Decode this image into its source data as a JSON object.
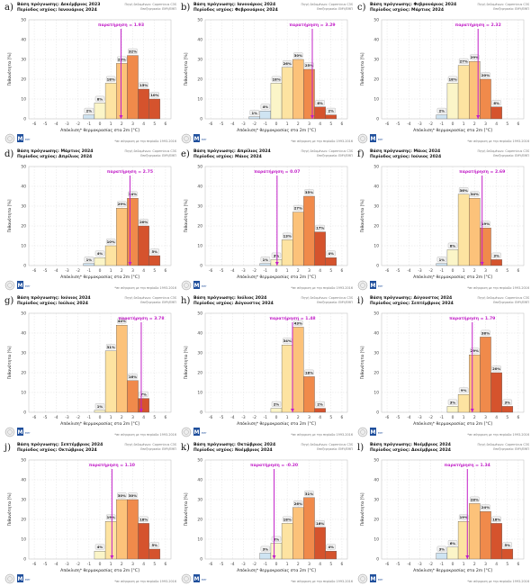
{
  "figure": {
    "source_line1": "Πηγή δεδομένων: Copernicus C3S",
    "source_line2": "Επεξεργασία: ΕΜΥ/ΕΜΠ",
    "footer": "*σε σύγκριση με την περίοδο 1993-2016",
    "xlabel": "Απόκλιση* θερμοκρασίας στα 2m [°C]",
    "ylabel": "Πιθανότητα [%]",
    "logo_text": "EMY"
  },
  "colors": {
    "lightblue": "#cfe4f2",
    "paleyellow": "#fbf5c8",
    "lightorange": "#fde3a1",
    "orange": "#fcc27a",
    "darkorange": "#f08a4b",
    "red": "#d5532d",
    "obs_line": "#c21fc8",
    "grid": "#d9d9d9"
  },
  "chart_data": [
    {
      "type": "bar",
      "panel_letter": "a)",
      "title": "Βάση πρόγνωσης: Δεκέμβριος 2023",
      "subtitle": "Περίοδος ισχύος: Ιανουάριος 2024",
      "observation_label": "παρατήρηση = 1.93",
      "observation": 1.93,
      "x": [
        -3,
        -2,
        -1,
        0,
        1,
        2,
        3,
        4,
        5
      ],
      "values": [
        0,
        0,
        2,
        8,
        18,
        28,
        32,
        15,
        10
      ],
      "value_labels": [
        "",
        "",
        "2%",
        "8%",
        "18%",
        "28%",
        "32%",
        "15%",
        "10%"
      ],
      "xticks": [
        -6,
        -5,
        -4,
        -3,
        -2,
        -1,
        0,
        1,
        2,
        3,
        4,
        5,
        6
      ],
      "yticks": [
        0,
        10,
        20,
        30,
        40,
        50
      ],
      "ylim": [
        0,
        50
      ],
      "xlabel": "Απόκλιση* θερμοκρασίας στα 2m [°C]",
      "ylabel": "Πιθανότητα [%]"
    },
    {
      "type": "bar",
      "panel_letter": "b)",
      "title": "Βάση πρόγνωσης: Ιανουάριος 2024",
      "subtitle": "Περίοδος ισχύος: Φεβρουάριος 2024",
      "observation_label": "παρατήρηση = 3.29",
      "observation": 3.29,
      "x": [
        -3,
        -2,
        -1,
        0,
        1,
        2,
        3,
        4,
        5
      ],
      "values": [
        0,
        1,
        4,
        18,
        26,
        30,
        25,
        6,
        2
      ],
      "value_labels": [
        "",
        "1%",
        "4%",
        "18%",
        "26%",
        "30%",
        "25%",
        "6%",
        "2%"
      ],
      "xticks": [
        -6,
        -5,
        -4,
        -3,
        -2,
        -1,
        0,
        1,
        2,
        3,
        4,
        5,
        6
      ],
      "yticks": [
        0,
        10,
        20,
        30,
        40,
        50
      ],
      "ylim": [
        0,
        50
      ],
      "xlabel": "Απόκλιση* θερμοκρασίας στα 2m [°C]",
      "ylabel": "Πιθανότητα [%]"
    },
    {
      "type": "bar",
      "panel_letter": "c)",
      "title": "Βάση πρόγνωσης: Φεβρουάριος 2024",
      "subtitle": "Περίοδος ισχύος: Μάρτιος 2024",
      "observation_label": "παρατήρηση = 2.32",
      "observation": 2.32,
      "x": [
        -3,
        -2,
        -1,
        0,
        1,
        2,
        3,
        4,
        5
      ],
      "values": [
        0,
        0,
        2,
        18,
        27,
        29,
        20,
        6,
        0
      ],
      "value_labels": [
        "",
        "",
        "2%",
        "18%",
        "27%",
        "29%",
        "20%",
        "6%",
        ""
      ],
      "xticks": [
        -6,
        -5,
        -4,
        -3,
        -2,
        -1,
        0,
        1,
        2,
        3,
        4,
        5,
        6
      ],
      "yticks": [
        0,
        10,
        20,
        30,
        40,
        50
      ],
      "ylim": [
        0,
        50
      ],
      "xlabel": "Απόκλιση* θερμοκρασίας στα 2m [°C]",
      "ylabel": "Πιθανότητα [%]"
    },
    {
      "type": "bar",
      "panel_letter": "d)",
      "title": "Βάση πρόγνωσης: Μάρτιος 2024",
      "subtitle": "Περίοδος ισχύος: Απρίλιος 2024",
      "observation_label": "παρατήρηση = 2.75",
      "observation": 2.75,
      "x": [
        -3,
        -2,
        -1,
        0,
        1,
        2,
        3,
        4,
        5
      ],
      "values": [
        0,
        0,
        1,
        4,
        10,
        29,
        34,
        20,
        5
      ],
      "value_labels": [
        "",
        "",
        "1%",
        "4%",
        "10%",
        "29%",
        "34%",
        "20%",
        "5%"
      ],
      "xticks": [
        -6,
        -5,
        -4,
        -3,
        -2,
        -1,
        0,
        1,
        2,
        3,
        4,
        5,
        6
      ],
      "yticks": [
        0,
        10,
        20,
        30,
        40,
        50
      ],
      "ylim": [
        0,
        50
      ],
      "xlabel": "Απόκλιση* θερμοκρασίας στα 2m [°C]",
      "ylabel": "Πιθανότητα [%]"
    },
    {
      "type": "bar",
      "panel_letter": "e)",
      "title": "Βάση πρόγνωσης: Απρίλιος 2024",
      "subtitle": "Περίοδος ισχύος: Μάιος 2024",
      "observation_label": "παρατήρηση = 0.07",
      "observation": 0.07,
      "x": [
        -3,
        -2,
        -1,
        0,
        1,
        2,
        3,
        4,
        5
      ],
      "values": [
        0,
        0,
        1,
        3,
        13,
        27,
        35,
        17,
        4
      ],
      "value_labels": [
        "",
        "",
        "1%",
        "3%",
        "13%",
        "27%",
        "35%",
        "17%",
        "4%"
      ],
      "xticks": [
        -6,
        -5,
        -4,
        -3,
        -2,
        -1,
        0,
        1,
        2,
        3,
        4,
        5,
        6
      ],
      "yticks": [
        0,
        10,
        20,
        30,
        40,
        50
      ],
      "ylim": [
        0,
        50
      ],
      "xlabel": "Απόκλιση* θερμοκρασίας στα 2m [°C]",
      "ylabel": "Πιθανότητα [%]"
    },
    {
      "type": "bar",
      "panel_letter": "f)",
      "title": "Βάση πρόγνωσης: Μάιος 2024",
      "subtitle": "Περίοδος ισχύος: Ιούνιος 2024",
      "observation_label": "παρατήρηση = 2.69",
      "observation": 2.69,
      "x": [
        -3,
        -2,
        -1,
        0,
        1,
        2,
        3,
        4,
        5
      ],
      "values": [
        0,
        0,
        1,
        8,
        36,
        34,
        19,
        3,
        0
      ],
      "value_labels": [
        "",
        "",
        "1%",
        "8%",
        "36%",
        "34%",
        "19%",
        "3%",
        ""
      ],
      "xticks": [
        -6,
        -5,
        -4,
        -3,
        -2,
        -1,
        0,
        1,
        2,
        3,
        4,
        5,
        6
      ],
      "yticks": [
        0,
        10,
        20,
        30,
        40,
        50
      ],
      "ylim": [
        0,
        50
      ],
      "xlabel": "Απόκλιση* θερμοκρασίας στα 2m [°C]",
      "ylabel": "Πιθανότητα [%]"
    },
    {
      "type": "bar",
      "panel_letter": "g)",
      "title": "Βάση πρόγνωσης: Ιούνιος 2024",
      "subtitle": "Περίοδος ισχύος: Ιούλιος 2024",
      "observation_label": "παρατήρηση = 3.78",
      "observation": 3.78,
      "x": [
        -3,
        -2,
        -1,
        0,
        1,
        2,
        3,
        4,
        5
      ],
      "values": [
        0,
        0,
        0,
        1,
        31,
        44,
        16,
        7,
        0
      ],
      "value_labels": [
        "",
        "",
        "",
        "1%",
        "31%",
        "44%",
        "16%",
        "7%",
        ""
      ],
      "xticks": [
        -6,
        -5,
        -4,
        -3,
        -2,
        -1,
        0,
        1,
        2,
        3,
        4,
        5,
        6
      ],
      "yticks": [
        0,
        10,
        20,
        30,
        40,
        50
      ],
      "ylim": [
        0,
        50
      ],
      "xlabel": "Απόκλιση* θερμοκρασίας στα 2m [°C]",
      "ylabel": "Πιθανότητα [%]"
    },
    {
      "type": "bar",
      "panel_letter": "h)",
      "title": "Βάση πρόγνωσης: Ιούλιος 2024",
      "subtitle": "Περίοδος ισχύος: Αύγουστος 2024",
      "observation_label": "παρατήρηση = 1.48",
      "observation": 1.48,
      "x": [
        -3,
        -2,
        -1,
        0,
        1,
        2,
        3,
        4,
        5
      ],
      "values": [
        0,
        0,
        0,
        2,
        34,
        43,
        18,
        2,
        0
      ],
      "value_labels": [
        "",
        "",
        "",
        "2%",
        "34%",
        "43%",
        "18%",
        "2%",
        ""
      ],
      "xticks": [
        -6,
        -5,
        -4,
        -3,
        -2,
        -1,
        0,
        1,
        2,
        3,
        4,
        5,
        6
      ],
      "yticks": [
        0,
        10,
        20,
        30,
        40,
        50
      ],
      "ylim": [
        0,
        50
      ],
      "xlabel": "Απόκλιση* θερμοκρασίας στα 2m [°C]",
      "ylabel": "Πιθανότητα [%]"
    },
    {
      "type": "bar",
      "panel_letter": "i)",
      "title": "Βάση πρόγνωσης: Αύγουστος 2024",
      "subtitle": "Περίοδος ισχύος: Σεπτέμβριος 2024",
      "observation_label": "παρατήρηση = 1.79",
      "observation": 1.79,
      "x": [
        -3,
        -2,
        -1,
        0,
        1,
        2,
        3,
        4,
        5
      ],
      "values": [
        0,
        0,
        0,
        3,
        9,
        29,
        38,
        20,
        3
      ],
      "value_labels": [
        "",
        "",
        "",
        "3%",
        "9%",
        "29%",
        "38%",
        "20%",
        "3%"
      ],
      "xticks": [
        -6,
        -5,
        -4,
        -3,
        -2,
        -1,
        0,
        1,
        2,
        3,
        4,
        5,
        6
      ],
      "yticks": [
        0,
        10,
        20,
        30,
        40,
        50
      ],
      "ylim": [
        0,
        50
      ],
      "xlabel": "Απόκλιση* θερμοκρασίας στα 2m [°C]",
      "ylabel": "Πιθανότητα [%]"
    },
    {
      "type": "bar",
      "panel_letter": "j)",
      "title": "Βάση πρόγνωσης: Σεπτέμβριος 2024",
      "subtitle": "Περίοδος ισχύος: Οκτώβριος 2024",
      "observation_label": "παρατήρηση = 1.10",
      "observation": 1.1,
      "x": [
        -3,
        -2,
        -1,
        0,
        1,
        2,
        3,
        4,
        5
      ],
      "values": [
        0,
        0,
        0,
        4,
        19,
        30,
        30,
        18,
        5
      ],
      "value_labels": [
        "",
        "",
        "",
        "4%",
        "19%",
        "30%",
        "30%",
        "18%",
        "5%"
      ],
      "xticks": [
        -6,
        -5,
        -4,
        -3,
        -2,
        -1,
        0,
        1,
        2,
        3,
        4,
        5,
        6
      ],
      "yticks": [
        0,
        10,
        20,
        30,
        40,
        50
      ],
      "ylim": [
        0,
        50
      ],
      "xlabel": "Απόκλιση* θερμοκρασίας στα 2m [°C]",
      "ylabel": "Πιθανότητα [%]"
    },
    {
      "type": "bar",
      "panel_letter": "k)",
      "title": "Βάση πρόγνωσης: Οκτώβριος 2024",
      "subtitle": "Περίοδος ισχύος: Νοέμβριος 2024",
      "observation_label": "παρατήρηση = -0.20",
      "observation": -0.2,
      "x": [
        -3,
        -2,
        -1,
        0,
        1,
        2,
        3,
        4,
        5
      ],
      "values": [
        0,
        0,
        3,
        8,
        18,
        26,
        31,
        16,
        4
      ],
      "value_labels": [
        "",
        "",
        "3%",
        "8%",
        "18%",
        "26%",
        "31%",
        "16%",
        "4%"
      ],
      "xticks": [
        -6,
        -5,
        -4,
        -3,
        -2,
        -1,
        0,
        1,
        2,
        3,
        4,
        5,
        6
      ],
      "yticks": [
        0,
        10,
        20,
        30,
        40,
        50
      ],
      "ylim": [
        0,
        50
      ],
      "xlabel": "Απόκλιση* θερμοκρασίας στα 2m [°C]",
      "ylabel": "Πιθανότητα [%]"
    },
    {
      "type": "bar",
      "panel_letter": "l)",
      "title": "Βάση πρόγνωσης: Νοέμβριος 2024",
      "subtitle": "Περίοδος ισχύος: Δεκέμβριος 2024",
      "observation_label": "παρατήρηση = 1.34",
      "observation": 1.34,
      "x": [
        -3,
        -2,
        -1,
        0,
        1,
        2,
        3,
        4,
        5
      ],
      "values": [
        0,
        0,
        3,
        6,
        19,
        28,
        24,
        18,
        5
      ],
      "value_labels": [
        "",
        "",
        "3%",
        "6%",
        "19%",
        "28%",
        "24%",
        "18%",
        "5%"
      ],
      "xticks": [
        -6,
        -5,
        -4,
        -3,
        -2,
        -1,
        0,
        1,
        2,
        3,
        4,
        5,
        6
      ],
      "yticks": [
        0,
        10,
        20,
        30,
        40,
        50
      ],
      "ylim": [
        0,
        50
      ],
      "xlabel": "Απόκλιση* θερμοκρασίας στα 2m [°C]",
      "ylabel": "Πιθανότητα [%]"
    }
  ]
}
